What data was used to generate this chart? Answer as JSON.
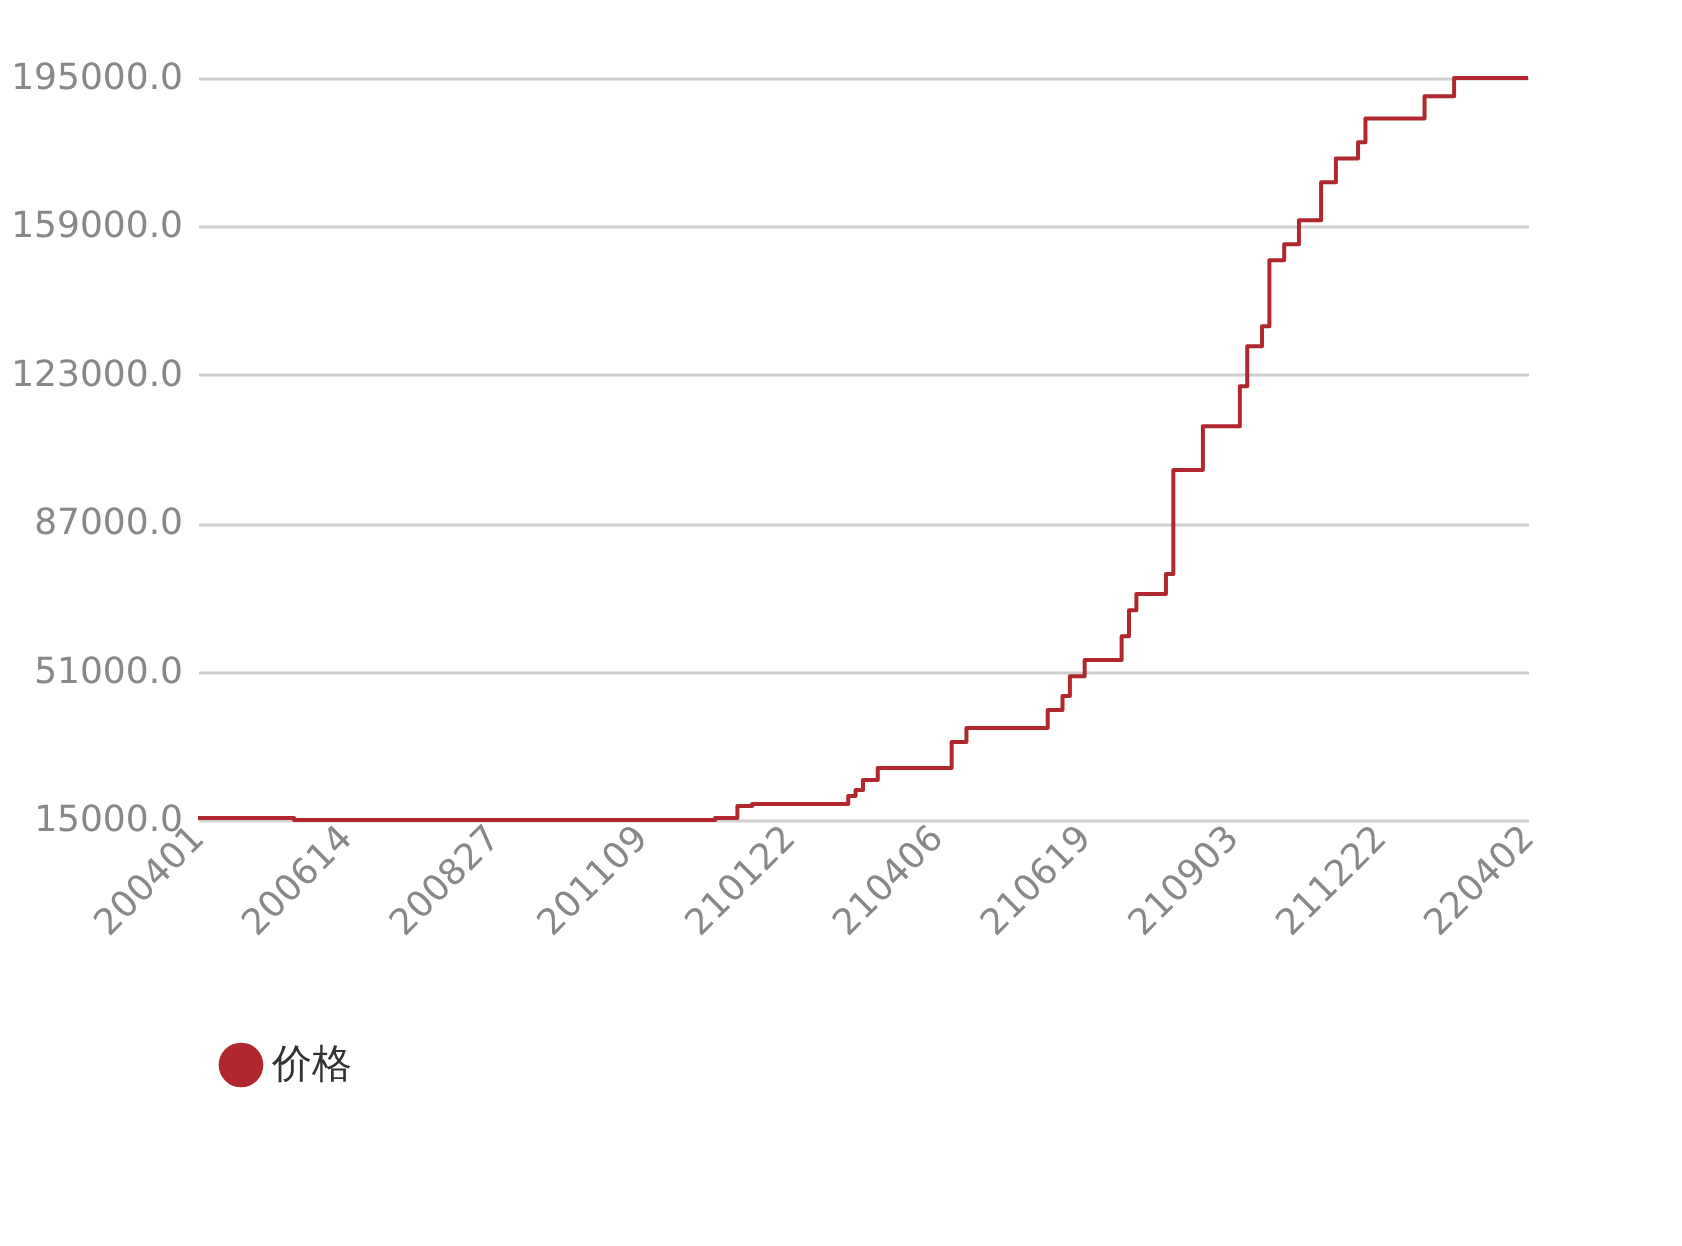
{
  "chart_data": {
    "type": "step",
    "categories": [
      "200401",
      null,
      null,
      null,
      null,
      null,
      null,
      null,
      null,
      null,
      null,
      null,
      null,
      null,
      null,
      null,
      null,
      null,
      null,
      null,
      "200614",
      null,
      null,
      null,
      null,
      null,
      null,
      null,
      null,
      null,
      null,
      null,
      null,
      null,
      null,
      null,
      null,
      null,
      null,
      null,
      "200827",
      null,
      null,
      null,
      null,
      null,
      null,
      null,
      null,
      null,
      null,
      null,
      null,
      null,
      null,
      null,
      null,
      null,
      null,
      null,
      "201109",
      null,
      null,
      null,
      null,
      null,
      null,
      null,
      null,
      null,
      null,
      null,
      null,
      null,
      null,
      null,
      null,
      null,
      null,
      null,
      "210122",
      null,
      null,
      null,
      null,
      null,
      null,
      null,
      null,
      null,
      null,
      null,
      null,
      null,
      null,
      null,
      null,
      null,
      null,
      null,
      "210406",
      null,
      null,
      null,
      null,
      null,
      null,
      null,
      null,
      null,
      null,
      null,
      null,
      null,
      null,
      null,
      null,
      null,
      null,
      null,
      "210619",
      null,
      null,
      null,
      null,
      null,
      null,
      null,
      null,
      null,
      null,
      null,
      null,
      null,
      null,
      null,
      null,
      null,
      null,
      null,
      "210903",
      null,
      null,
      null,
      null,
      null,
      null,
      null,
      null,
      null,
      null,
      null,
      null,
      null,
      null,
      null,
      null,
      null,
      null,
      null,
      "211222",
      null,
      null,
      null,
      null,
      null,
      null,
      null,
      null,
      null,
      null,
      null,
      null,
      null,
      null,
      null,
      null,
      null,
      null,
      null,
      "220402"
    ],
    "series": [
      {
        "name": "价格",
        "color": "#b0282e",
        "values": [
          15500,
          15500,
          15500,
          15500,
          15500,
          15500,
          15500,
          15500,
          15500,
          15500,
          15500,
          15500,
          15500,
          15000,
          15000,
          15000,
          15000,
          15000,
          15000,
          15000,
          15000,
          15000,
          15000,
          15000,
          15000,
          15000,
          15000,
          15000,
          15000,
          15000,
          15000,
          15000,
          15000,
          15000,
          15000,
          15000,
          15000,
          15000,
          15000,
          15000,
          15000,
          15000,
          15000,
          15000,
          15000,
          15000,
          15000,
          15000,
          15000,
          15000,
          15000,
          15000,
          15000,
          15000,
          15000,
          15000,
          15000,
          15000,
          15000,
          15000,
          15000,
          15000,
          15000,
          15000,
          15000,
          15000,
          15000,
          15000,
          15000,
          15000,
          15500,
          15500,
          15500,
          18400,
          18400,
          18900,
          18900,
          18900,
          18900,
          18900,
          18900,
          18900,
          18900,
          18900,
          18900,
          18900,
          18900,
          18900,
          20800,
          22300,
          24700,
          24700,
          27600,
          27600,
          27600,
          27600,
          27600,
          27600,
          27600,
          27600,
          27600,
          27600,
          33900,
          33900,
          37300,
          37300,
          37300,
          37300,
          37300,
          37300,
          37300,
          37300,
          37300,
          37300,
          37300,
          41700,
          41700,
          45100,
          49900,
          49900,
          53800,
          53800,
          53800,
          53800,
          53800,
          59600,
          65900,
          69800,
          69800,
          69800,
          69800,
          74700,
          99900,
          99900,
          99900,
          99900,
          110500,
          110500,
          110500,
          110500,
          110500,
          120200,
          129900,
          129900,
          134800,
          150800,
          150800,
          154700,
          154700,
          160500,
          160500,
          160500,
          169700,
          169700,
          175500,
          175500,
          175500,
          179400,
          185200,
          185200,
          185200,
          185200,
          185200,
          185200,
          185200,
          185200,
          190600,
          190600,
          190600,
          190600,
          195000,
          195000,
          195000,
          195000,
          195000,
          195000,
          195000,
          195000,
          195000,
          195000,
          195000
        ]
      }
    ],
    "ylim": [
      15000,
      195000
    ],
    "yticks": [
      {
        "value": 15000,
        "label": "15000.0"
      },
      {
        "value": 51000,
        "label": "51000.0"
      },
      {
        "value": 87000,
        "label": "87000.0"
      },
      {
        "value": 123000,
        "label": "123000.0"
      },
      {
        "value": 159000,
        "label": "159000.0"
      },
      {
        "value": 195000,
        "label": "195000.0"
      }
    ],
    "grid": "y",
    "legend": "bottom",
    "marker": "none",
    "line_style": "solid"
  }
}
